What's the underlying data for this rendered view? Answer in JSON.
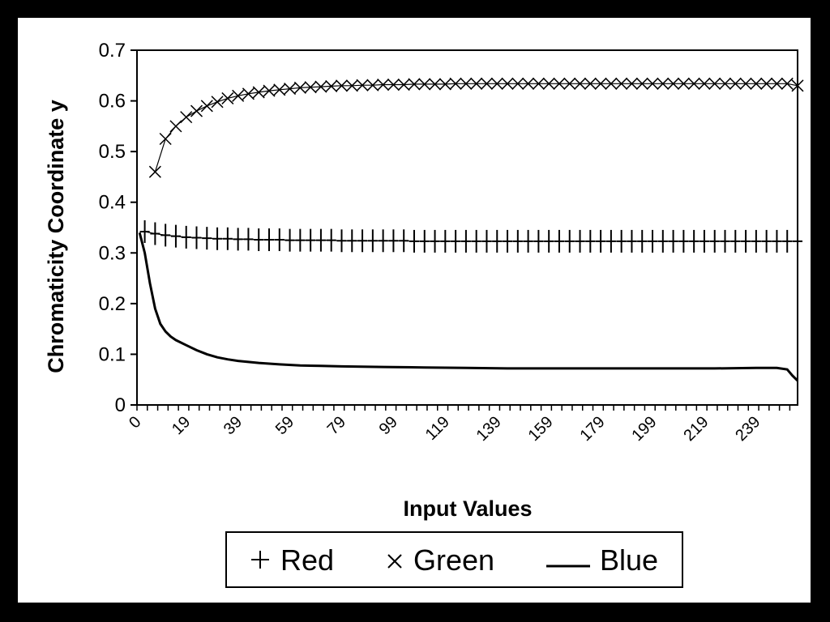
{
  "chart_data": {
    "type": "line",
    "xlabel": "Input Values",
    "ylabel": "Chromaticity Coordinate y",
    "ylim": [
      0,
      0.7
    ],
    "yticks": [
      "0",
      "0.1",
      "0.2",
      "0.3",
      "0.4",
      "0.5",
      "0.6",
      "0.7"
    ],
    "xlim": [
      0,
      255
    ],
    "xticks": [
      "0",
      "19",
      "39",
      "59",
      "79",
      "99",
      "119",
      "139",
      "159",
      "179",
      "199",
      "219",
      "239"
    ],
    "legend_position": "bottom",
    "series": [
      {
        "name": "Red",
        "marker": "plus",
        "x": [
          3,
          7,
          11,
          15,
          19,
          23,
          27,
          31,
          35,
          39,
          43,
          47,
          51,
          55,
          59,
          63,
          67,
          71,
          75,
          79,
          83,
          87,
          91,
          95,
          99,
          103,
          107,
          111,
          115,
          119,
          123,
          127,
          131,
          135,
          139,
          143,
          147,
          151,
          155,
          159,
          163,
          167,
          171,
          175,
          179,
          183,
          187,
          191,
          195,
          199,
          203,
          207,
          211,
          215,
          219,
          223,
          227,
          231,
          235,
          239,
          243,
          247,
          251,
          255
        ],
        "y": [
          0.342,
          0.338,
          0.335,
          0.333,
          0.331,
          0.33,
          0.329,
          0.328,
          0.328,
          0.327,
          0.327,
          0.326,
          0.326,
          0.326,
          0.325,
          0.325,
          0.325,
          0.325,
          0.325,
          0.324,
          0.324,
          0.324,
          0.324,
          0.324,
          0.324,
          0.324,
          0.323,
          0.323,
          0.323,
          0.323,
          0.323,
          0.323,
          0.323,
          0.323,
          0.323,
          0.323,
          0.323,
          0.323,
          0.323,
          0.323,
          0.323,
          0.323,
          0.323,
          0.323,
          0.323,
          0.323,
          0.323,
          0.323,
          0.323,
          0.323,
          0.323,
          0.323,
          0.323,
          0.323,
          0.323,
          0.323,
          0.323,
          0.323,
          0.323,
          0.323,
          0.323,
          0.323,
          0.323,
          0.323
        ]
      },
      {
        "name": "Green",
        "marker": "cross",
        "x": [
          7,
          11,
          15,
          19,
          23,
          27,
          31,
          35,
          39,
          43,
          47,
          51,
          55,
          59,
          63,
          67,
          71,
          75,
          79,
          83,
          87,
          91,
          95,
          99,
          103,
          107,
          111,
          115,
          119,
          123,
          127,
          131,
          135,
          139,
          143,
          147,
          151,
          155,
          159,
          163,
          167,
          171,
          175,
          179,
          183,
          187,
          191,
          195,
          199,
          203,
          207,
          211,
          215,
          219,
          223,
          227,
          231,
          235,
          239,
          243,
          247,
          251,
          255
        ],
        "y": [
          0.46,
          0.525,
          0.55,
          0.568,
          0.58,
          0.59,
          0.598,
          0.605,
          0.61,
          0.614,
          0.617,
          0.62,
          0.622,
          0.624,
          0.626,
          0.627,
          0.628,
          0.629,
          0.63,
          0.63,
          0.631,
          0.631,
          0.632,
          0.632,
          0.632,
          0.633,
          0.633,
          0.633,
          0.633,
          0.634,
          0.634,
          0.634,
          0.634,
          0.634,
          0.634,
          0.634,
          0.634,
          0.634,
          0.634,
          0.634,
          0.634,
          0.634,
          0.634,
          0.634,
          0.634,
          0.634,
          0.634,
          0.634,
          0.634,
          0.634,
          0.634,
          0.634,
          0.634,
          0.634,
          0.634,
          0.634,
          0.634,
          0.634,
          0.634,
          0.634,
          0.634,
          0.634,
          0.63
        ]
      },
      {
        "name": "Blue",
        "marker": "none",
        "x": [
          1,
          3,
          5,
          7,
          9,
          11,
          13,
          15,
          19,
          23,
          27,
          31,
          35,
          39,
          47,
          55,
          63,
          71,
          79,
          95,
          111,
          127,
          143,
          159,
          175,
          191,
          207,
          223,
          239,
          247,
          251,
          253,
          255
        ],
        "y": [
          0.34,
          0.3,
          0.24,
          0.19,
          0.16,
          0.145,
          0.135,
          0.128,
          0.118,
          0.108,
          0.1,
          0.094,
          0.09,
          0.087,
          0.083,
          0.08,
          0.078,
          0.077,
          0.076,
          0.075,
          0.074,
          0.073,
          0.072,
          0.072,
          0.072,
          0.072,
          0.072,
          0.072,
          0.073,
          0.073,
          0.07,
          0.058,
          0.048
        ]
      }
    ]
  }
}
